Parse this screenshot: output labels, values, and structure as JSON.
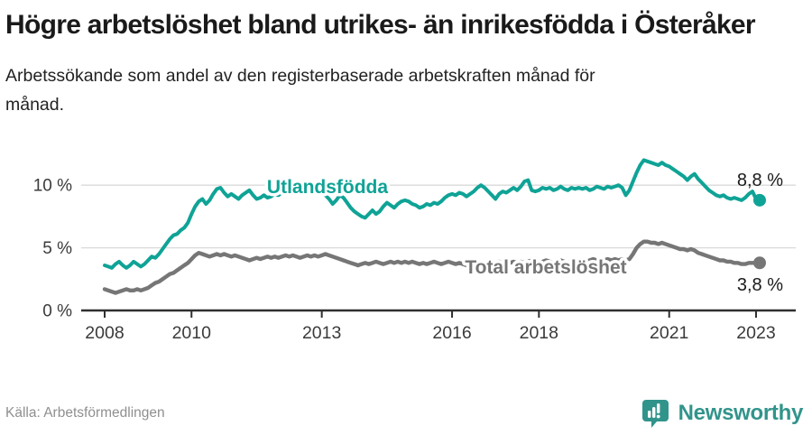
{
  "title": "Högre arbetslöshet bland utrikes- än inrikesfödda i Österåker",
  "subtitle": "Arbetssökande som andel av den registerbaserade arbetskraften månad för månad.",
  "source": "Källa: Arbetsförmedlingen",
  "logo": {
    "text": "Newsworthy",
    "icon": "newsworthy-chart-bubble-icon",
    "color": "#31948b"
  },
  "colors": {
    "foreign_born_line": "#0fa396",
    "total_line": "#767676",
    "grid": "#dadada",
    "axis": "#2f2f2f",
    "tick_text": "#3b3b3b",
    "value_label_text": "#1a1a1a",
    "source_text": "#8f8f8f",
    "logo_teal": "#31948b"
  },
  "chart_data": {
    "type": "line",
    "title": "Högre arbetslöshet bland utrikes- än inrikesfödda i Österåker",
    "xlabel": "",
    "ylabel": "",
    "x_start": "2008-01",
    "x_end": "2023-02",
    "frequency": "monthly",
    "xticks": [
      2008,
      2010,
      2013,
      2016,
      2018,
      2021,
      2023
    ],
    "yticks": [
      {
        "value": 0,
        "label": "0 %"
      },
      {
        "value": 5,
        "label": "5 %"
      },
      {
        "value": 10,
        "label": "10 %"
      }
    ],
    "ylim": [
      0,
      13.4
    ],
    "grid": "horizontal",
    "legend_position": "inline-on-lines",
    "series": [
      {
        "name": "Utlandsfödda",
        "color": "#0fa396",
        "end_label": "8,8 %",
        "end_value": 8.8,
        "values": [
          3.6,
          3.5,
          3.4,
          3.7,
          3.9,
          3.6,
          3.4,
          3.6,
          3.9,
          3.7,
          3.5,
          3.7,
          4.0,
          4.3,
          4.2,
          4.5,
          4.9,
          5.3,
          5.7,
          6.0,
          6.1,
          6.4,
          6.6,
          7.0,
          7.7,
          8.3,
          8.7,
          8.9,
          8.5,
          8.8,
          9.3,
          9.7,
          9.8,
          9.4,
          9.1,
          9.3,
          9.1,
          8.9,
          9.2,
          9.4,
          9.6,
          9.2,
          8.9,
          9.0,
          9.2,
          9.0,
          9.1,
          9.3,
          9.2,
          9.4,
          9.5,
          9.3,
          9.5,
          9.6,
          9.4,
          9.5,
          9.7,
          9.5,
          9.4,
          9.3,
          9.4,
          9.2,
          8.9,
          8.5,
          8.8,
          9.2,
          9.0,
          8.6,
          8.2,
          7.9,
          7.7,
          7.5,
          7.4,
          7.7,
          8.0,
          7.7,
          7.9,
          8.3,
          8.6,
          8.4,
          8.2,
          8.5,
          8.7,
          8.8,
          8.7,
          8.5,
          8.4,
          8.2,
          8.3,
          8.5,
          8.4,
          8.6,
          8.5,
          8.7,
          9.0,
          9.2,
          9.3,
          9.2,
          9.4,
          9.3,
          9.1,
          9.3,
          9.5,
          9.8,
          10.0,
          9.8,
          9.5,
          9.2,
          8.9,
          9.3,
          9.5,
          9.4,
          9.6,
          9.8,
          9.6,
          9.9,
          10.3,
          10.4,
          9.6,
          9.5,
          9.6,
          9.8,
          9.7,
          9.8,
          9.6,
          9.7,
          9.9,
          9.7,
          9.6,
          9.8,
          9.7,
          9.8,
          9.7,
          9.8,
          9.6,
          9.7,
          9.9,
          9.8,
          9.7,
          9.9,
          9.8,
          9.9,
          10.0,
          9.8,
          9.2,
          9.6,
          10.3,
          11.0,
          11.6,
          12.0,
          11.9,
          11.8,
          11.7,
          11.6,
          11.8,
          11.6,
          11.5,
          11.3,
          11.1,
          10.9,
          10.7,
          10.4,
          10.7,
          10.9,
          10.5,
          10.2,
          9.9,
          9.6,
          9.4,
          9.2,
          9.1,
          9.2,
          9.0,
          8.9,
          9.0,
          8.9,
          8.8,
          9.0,
          9.3,
          9.5,
          8.9,
          8.8
        ]
      },
      {
        "name": "Total arbetslöshet",
        "color": "#767676",
        "end_label": "3,8 %",
        "end_value": 3.8,
        "values": [
          1.7,
          1.6,
          1.5,
          1.4,
          1.5,
          1.6,
          1.7,
          1.6,
          1.6,
          1.7,
          1.6,
          1.7,
          1.8,
          2.0,
          2.2,
          2.3,
          2.5,
          2.7,
          2.9,
          3.0,
          3.2,
          3.4,
          3.6,
          3.8,
          4.1,
          4.4,
          4.6,
          4.5,
          4.4,
          4.3,
          4.4,
          4.5,
          4.4,
          4.5,
          4.4,
          4.3,
          4.4,
          4.3,
          4.2,
          4.1,
          4.0,
          4.1,
          4.2,
          4.1,
          4.2,
          4.3,
          4.2,
          4.3,
          4.2,
          4.3,
          4.4,
          4.3,
          4.4,
          4.3,
          4.2,
          4.3,
          4.4,
          4.3,
          4.4,
          4.3,
          4.4,
          4.5,
          4.4,
          4.3,
          4.2,
          4.1,
          4.0,
          3.9,
          3.8,
          3.7,
          3.6,
          3.7,
          3.8,
          3.7,
          3.8,
          3.9,
          3.8,
          3.7,
          3.8,
          3.9,
          3.8,
          3.9,
          3.8,
          3.9,
          3.8,
          3.9,
          3.8,
          3.7,
          3.8,
          3.7,
          3.8,
          3.9,
          3.8,
          3.7,
          3.8,
          3.9,
          3.8,
          3.7,
          3.8,
          3.7,
          3.6,
          3.7,
          3.8,
          3.7,
          3.8,
          3.7,
          3.8,
          3.7,
          3.8,
          3.9,
          3.8,
          3.7,
          3.8,
          3.9,
          3.8,
          3.9,
          3.8,
          3.9,
          4.0,
          3.9,
          3.8,
          3.9,
          4.0,
          3.9,
          3.8,
          3.9,
          4.0,
          3.9,
          3.8,
          3.9,
          4.0,
          3.9,
          4.0,
          3.9,
          4.0,
          4.1,
          4.0,
          4.1,
          4.0,
          4.1,
          4.0,
          4.1,
          4.0,
          4.1,
          4.0,
          4.1,
          4.5,
          5.0,
          5.3,
          5.5,
          5.5,
          5.4,
          5.4,
          5.3,
          5.4,
          5.3,
          5.2,
          5.1,
          5.0,
          4.9,
          4.9,
          4.8,
          4.9,
          4.8,
          4.6,
          4.5,
          4.4,
          4.3,
          4.2,
          4.1,
          4.0,
          4.0,
          3.9,
          3.9,
          3.8,
          3.8,
          3.7,
          3.7,
          3.8,
          3.8,
          3.8,
          3.8
        ]
      }
    ]
  }
}
